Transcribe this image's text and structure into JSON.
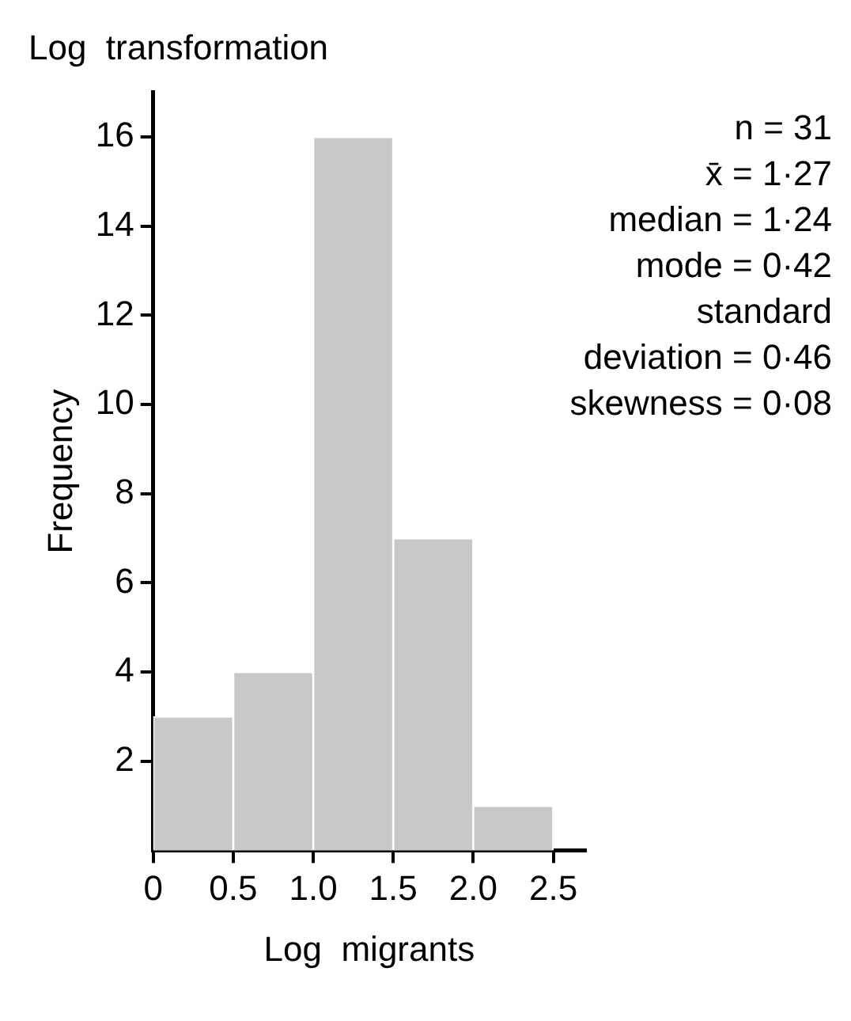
{
  "chart_data": {
    "type": "histogram",
    "title": "Log  transformation",
    "xlabel": "Log  migrants",
    "ylabel": "Frequency",
    "bins": [
      0,
      0.5,
      1,
      1.5,
      2,
      2.5
    ],
    "values": [
      3,
      4,
      16,
      7,
      1
    ],
    "color": "#c8c8c8",
    "xlim": [
      0,
      2.7
    ],
    "xticks": [
      0,
      0.5,
      {
        "value": 1,
        "label": "1.0"
      },
      1.5,
      {
        "value": 2,
        "label": "2.0"
      },
      2.5
    ],
    "ylim": [
      0,
      17
    ],
    "yticks": [
      2,
      4,
      6,
      8,
      10,
      12,
      14,
      16
    ],
    "grid": false,
    "legend": false,
    "annotations": [
      "n = 31",
      "x̄ = 1·27",
      "median = 1·24",
      "mode = 0·42",
      "standard deviation = 0·46",
      "skewness = 0·08"
    ]
  }
}
